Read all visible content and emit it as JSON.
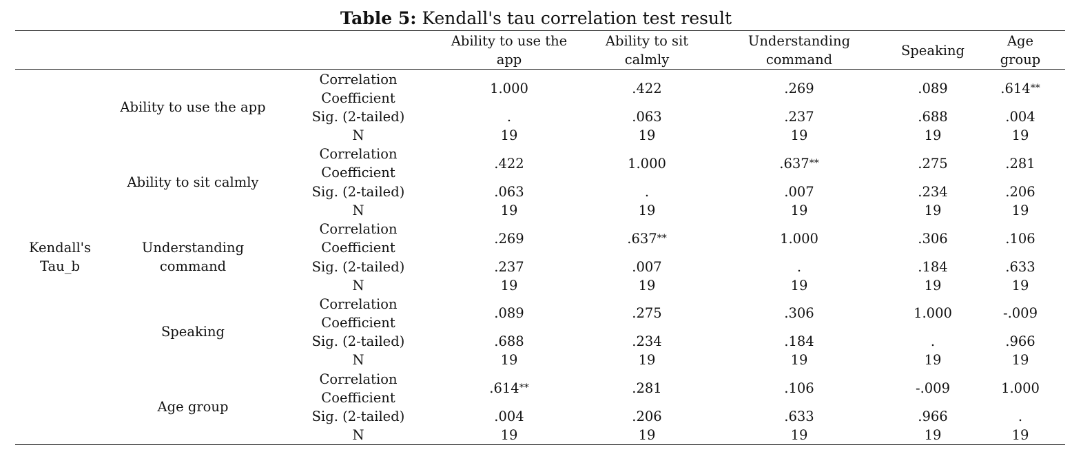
{
  "caption": {
    "label": "Table 5:",
    "text": " Kendall's tau correlation test result"
  },
  "columns": [
    [
      "Ability to use the",
      "app"
    ],
    [
      "Ability to sit",
      "calmly"
    ],
    [
      "Understanding",
      "command"
    ],
    [
      "Speaking",
      ""
    ],
    [
      "Age",
      "group"
    ]
  ],
  "outer_label": [
    "Kendall's",
    "Tau_b"
  ],
  "stat_labels": [
    [
      "Correlation",
      "Coefficient"
    ],
    [
      "Sig. (2-tailed)"
    ],
    [
      "N"
    ]
  ],
  "row_groups": [
    {
      "name": [
        "Ability to use the app"
      ],
      "corr": [
        [
          "1.000",
          ""
        ],
        [
          ".422",
          ""
        ],
        [
          ".269",
          ""
        ],
        [
          ".089",
          ""
        ],
        [
          ".614",
          "**"
        ]
      ],
      "sig": [
        ".",
        ".063",
        ".237",
        ".688",
        ".004"
      ],
      "n": [
        "19",
        "19",
        "19",
        "19",
        "19"
      ]
    },
    {
      "name": [
        "Ability to sit calmly"
      ],
      "corr": [
        [
          ".422",
          ""
        ],
        [
          "1.000",
          ""
        ],
        [
          ".637",
          "**"
        ],
        [
          ".275",
          ""
        ],
        [
          ".281",
          ""
        ]
      ],
      "sig": [
        ".063",
        ".",
        ".007",
        ".234",
        ".206"
      ],
      "n": [
        "19",
        "19",
        "19",
        "19",
        "19"
      ]
    },
    {
      "name": [
        "Understanding",
        "command"
      ],
      "corr": [
        [
          ".269",
          ""
        ],
        [
          ".637",
          "**"
        ],
        [
          "1.000",
          ""
        ],
        [
          ".306",
          ""
        ],
        [
          ".106",
          ""
        ]
      ],
      "sig": [
        ".237",
        ".007",
        ".",
        ".184",
        ".633"
      ],
      "n": [
        "19",
        "19",
        "19",
        "19",
        "19"
      ]
    },
    {
      "name": [
        "Speaking"
      ],
      "corr": [
        [
          ".089",
          ""
        ],
        [
          ".275",
          ""
        ],
        [
          ".306",
          ""
        ],
        [
          "1.000",
          ""
        ],
        [
          "-.009",
          ""
        ]
      ],
      "sig": [
        ".688",
        ".234",
        ".184",
        ".",
        ".966"
      ],
      "n": [
        "19",
        "19",
        "19",
        "19",
        "19"
      ]
    },
    {
      "name": [
        "Age group"
      ],
      "corr": [
        [
          ".614",
          "**"
        ],
        [
          ".281",
          ""
        ],
        [
          ".106",
          ""
        ],
        [
          "-.009",
          ""
        ],
        [
          "1.000",
          ""
        ]
      ],
      "sig": [
        ".004",
        ".206",
        ".633",
        ".966",
        "."
      ],
      "n": [
        "19",
        "19",
        "19",
        "19",
        "19"
      ]
    }
  ]
}
